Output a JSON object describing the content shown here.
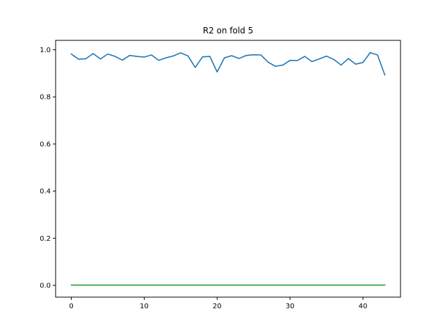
{
  "chart_data": {
    "type": "line",
    "title": "R2 on fold 5",
    "xlabel": "",
    "ylabel": "",
    "xlim": [
      -2.15,
      45.15
    ],
    "ylim": [
      -0.05,
      1.04
    ],
    "xticks": [
      0,
      10,
      20,
      30,
      40
    ],
    "xtick_labels": [
      "0",
      "10",
      "20",
      "30",
      "40"
    ],
    "yticks": [
      0.0,
      0.2,
      0.4,
      0.6,
      0.8,
      1.0
    ],
    "ytick_labels": [
      "0.0",
      "0.2",
      "0.4",
      "0.6",
      "0.8",
      "1.0"
    ],
    "grid": false,
    "legend": "none",
    "x": [
      0,
      1,
      2,
      3,
      4,
      5,
      6,
      7,
      8,
      9,
      10,
      11,
      12,
      13,
      14,
      15,
      16,
      17,
      18,
      19,
      20,
      21,
      22,
      23,
      24,
      25,
      26,
      27,
      28,
      29,
      30,
      31,
      32,
      33,
      34,
      35,
      36,
      37,
      38,
      39,
      40,
      41,
      42,
      43
    ],
    "series": [
      {
        "color": "#1f77b4",
        "values": [
          0.982,
          0.96,
          0.962,
          0.984,
          0.961,
          0.982,
          0.972,
          0.956,
          0.976,
          0.972,
          0.969,
          0.978,
          0.955,
          0.966,
          0.974,
          0.987,
          0.974,
          0.925,
          0.97,
          0.972,
          0.906,
          0.966,
          0.975,
          0.963,
          0.976,
          0.979,
          0.978,
          0.947,
          0.93,
          0.935,
          0.955,
          0.954,
          0.972,
          0.95,
          0.961,
          0.973,
          0.959,
          0.935,
          0.963,
          0.939,
          0.946,
          0.988,
          0.978,
          0.893
        ]
      },
      {
        "color": "#2ca02c",
        "values": [
          0.001,
          0.001,
          0.001,
          0.001,
          0.001,
          0.001,
          0.001,
          0.001,
          0.001,
          0.001,
          0.001,
          0.001,
          0.001,
          0.001,
          0.001,
          0.001,
          0.001,
          0.001,
          0.001,
          0.001,
          0.001,
          0.001,
          0.001,
          0.001,
          0.001,
          0.001,
          0.001,
          0.001,
          0.001,
          0.001,
          0.001,
          0.001,
          0.001,
          0.001,
          0.001,
          0.001,
          0.001,
          0.001,
          0.001,
          0.001,
          0.001,
          0.001,
          0.001,
          0.001
        ]
      }
    ]
  }
}
